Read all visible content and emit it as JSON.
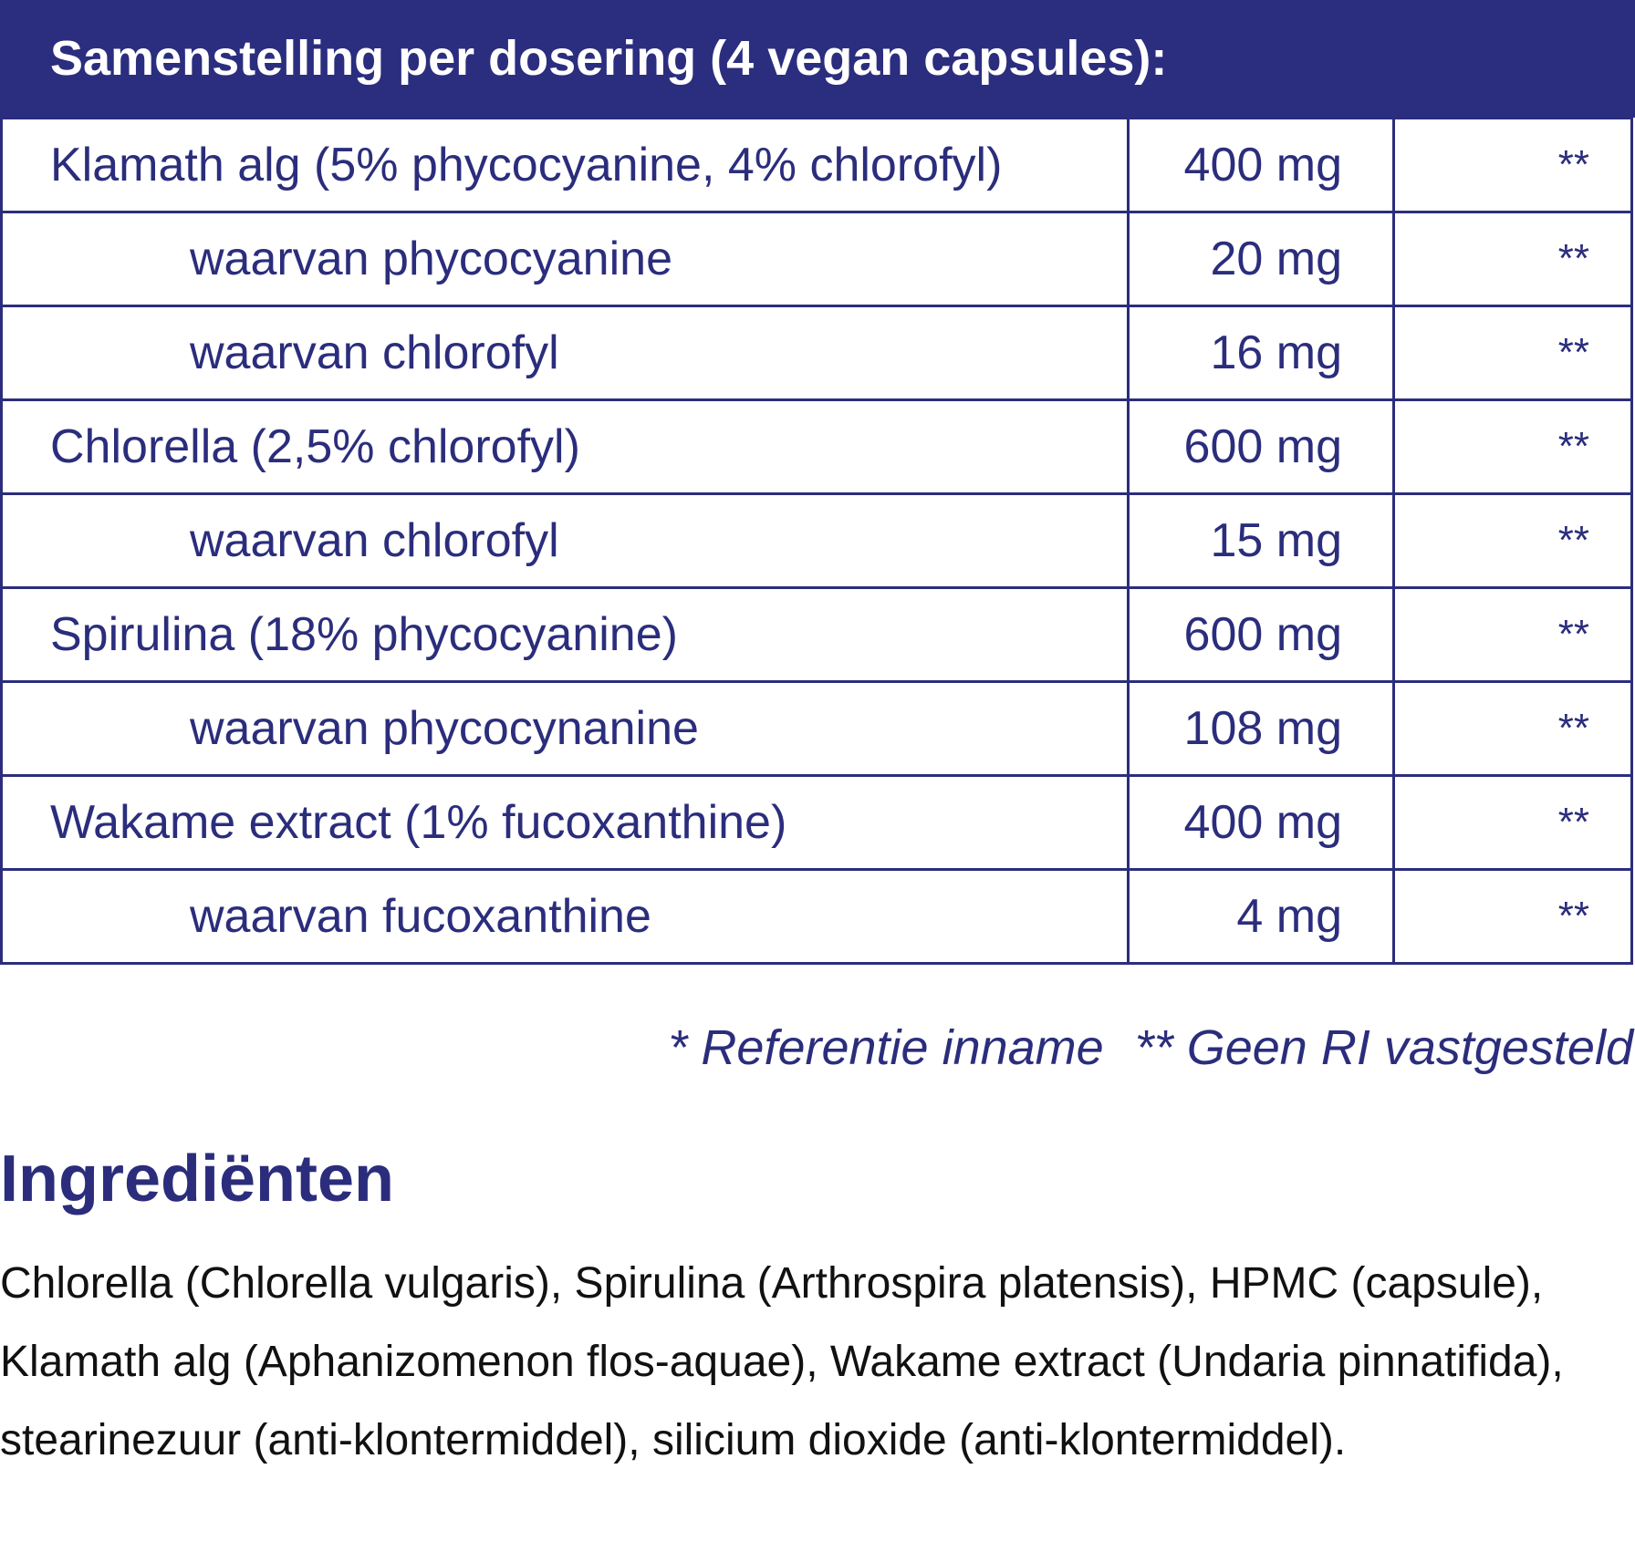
{
  "header": {
    "title": "Samenstelling per dosering (4 vegan capsules):"
  },
  "table": {
    "rows": [
      [
        "Klamath alg (5% phycocyanine, 4% chlorofyl)",
        "400 mg",
        "**"
      ],
      [
        "waarvan phycocyanine",
        "20 mg",
        "**"
      ],
      [
        "waarvan chlorofyl",
        "16 mg",
        "**"
      ],
      [
        "Chlorella (2,5% chlorofyl)",
        "600 mg",
        "**"
      ],
      [
        "waarvan chlorofyl",
        "15 mg",
        "**"
      ],
      [
        "Spirulina (18% phycocyanine)",
        "600 mg",
        "**"
      ],
      [
        "waarvan phycocynanine",
        "108 mg",
        "**"
      ],
      [
        "Wakame extract (1% fucoxanthine)",
        "400 mg",
        "**"
      ],
      [
        "waarvan fucoxanthine",
        "4 mg",
        "**"
      ]
    ]
  },
  "footnote": [
    "* Referentie inname",
    "** Geen RI vastgesteld"
  ],
  "ingredients": {
    "title": "Ingrediënten",
    "text": "Chlorella (Chlorella vulgaris), Spirulina (Arthrospira platensis), HPMC (capsule), Klamath alg (Aphanizomenon flos-aquae), Wakame extract (Undaria pinnatifida), stearinezuur (anti-klontermiddel), silicium dioxide (anti-klontermiddel)."
  }
}
